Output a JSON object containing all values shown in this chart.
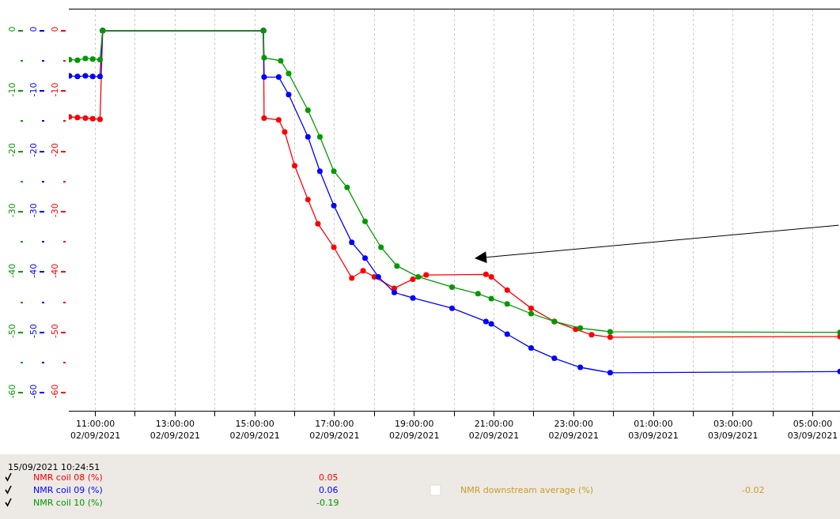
{
  "chart_data": {
    "type": "line",
    "marker": "circle",
    "grid": "x",
    "legend": "bottom",
    "xlim": [
      "2021-09-02T10:20",
      "2021-09-03T05:41"
    ],
    "xticks": [
      {
        "value": "2021-09-02T11:00",
        "label": "11:00:00\n02/09/2021"
      },
      {
        "value": "2021-09-02T12:00",
        "label": null
      },
      {
        "value": "2021-09-02T13:00",
        "label": "13:00:00\n02/09/2021"
      },
      {
        "value": "2021-09-02T14:00",
        "label": null
      },
      {
        "value": "2021-09-02T15:00",
        "label": "15:00:00\n02/09/2021"
      },
      {
        "value": "2021-09-02T16:00",
        "label": null
      },
      {
        "value": "2021-09-02T17:00",
        "label": "17:00:00\n02/09/2021"
      },
      {
        "value": "2021-09-02T18:00",
        "label": null
      },
      {
        "value": "2021-09-02T19:00",
        "label": "19:00:00\n02/09/2021"
      },
      {
        "value": "2021-09-02T20:00",
        "label": null
      },
      {
        "value": "2021-09-02T21:00",
        "label": "21:00:00\n02/09/2021"
      },
      {
        "value": "2021-09-02T22:00",
        "label": null
      },
      {
        "value": "2021-09-02T23:00",
        "label": "23:00:00\n02/09/2021"
      },
      {
        "value": "2021-09-03T00:00",
        "label": null
      },
      {
        "value": "2021-09-03T01:00",
        "label": "01:00:00\n03/09/2021"
      },
      {
        "value": "2021-09-03T02:00",
        "label": null
      },
      {
        "value": "2021-09-03T03:00",
        "label": "03:00:00\n03/09/2021"
      },
      {
        "value": "2021-09-03T04:00",
        "label": null
      },
      {
        "value": "2021-09-03T05:00",
        "label": "05:00:00\n03/09/2021"
      }
    ],
    "ylim": [
      -63,
      3.5
    ],
    "yticks": [
      0,
      -10,
      -20,
      -30,
      -40,
      -50,
      -60
    ],
    "y2lim": [
      -63,
      3.5
    ],
    "y2ticks": [
      0,
      -10,
      -20,
      -30,
      -40,
      -50,
      -60
    ],
    "y3lim": [
      -63,
      3.5
    ],
    "y3ticks": [
      0,
      -10,
      -20,
      -30,
      -40,
      -50,
      -60
    ],
    "series": [
      {
        "name": "NMR coil 08 (%)",
        "color": "#ff0000",
        "axis": "y",
        "x": [
          "2021-09-02T10:21",
          "2021-09-02T10:33",
          "2021-09-02T10:45",
          "2021-09-02T10:56",
          "2021-09-02T11:07",
          "2021-09-02T11:11",
          "2021-09-02T15:13",
          "2021-09-02T15:14",
          "2021-09-02T15:36",
          "2021-09-02T15:45",
          "2021-09-02T16:00",
          "2021-09-02T16:20",
          "2021-09-02T16:35",
          "2021-09-02T16:59",
          "2021-09-02T17:26",
          "2021-09-02T17:43",
          "2021-09-02T18:00",
          "2021-09-02T18:30",
          "2021-09-02T18:58",
          "2021-09-02T19:18",
          "2021-09-02T20:48",
          "2021-09-02T20:56",
          "2021-09-02T21:20",
          "2021-09-02T21:56",
          "2021-09-02T22:31",
          "2021-09-02T23:03",
          "2021-09-02T23:27",
          "2021-09-02T23:55",
          "2021-09-03T05:41"
        ],
        "values": [
          -14.3,
          -14.4,
          -14.5,
          -14.6,
          -14.7,
          0,
          0,
          -14.5,
          -14.8,
          -16.8,
          -22.4,
          -28,
          -32,
          -35.9,
          -41,
          -39.8,
          -40.8,
          -42.7,
          -41.2,
          -40.5,
          -40.4,
          -40.8,
          -43,
          -46,
          -48.2,
          -49.5,
          -50.4,
          -50.8,
          -50.7
        ]
      },
      {
        "name": "NMR coil 09 (%)",
        "color": "#0000ff",
        "axis": "y2",
        "x": [
          "2021-09-02T10:21",
          "2021-09-02T10:33",
          "2021-09-02T10:45",
          "2021-09-02T10:56",
          "2021-09-02T11:07",
          "2021-09-02T11:11",
          "2021-09-02T15:13",
          "2021-09-02T15:14",
          "2021-09-02T15:36",
          "2021-09-02T15:51",
          "2021-09-02T16:20",
          "2021-09-02T16:38",
          "2021-09-02T16:59",
          "2021-09-02T17:26",
          "2021-09-02T17:46",
          "2021-09-02T18:06",
          "2021-09-02T18:30",
          "2021-09-02T18:58",
          "2021-09-02T19:57",
          "2021-09-02T20:48",
          "2021-09-02T20:56",
          "2021-09-02T21:20",
          "2021-09-02T21:56",
          "2021-09-02T22:31",
          "2021-09-02T23:10",
          "2021-09-02T23:55",
          "2021-09-03T05:41"
        ],
        "values": [
          -7.5,
          -7.6,
          -7.5,
          -7.6,
          -7.6,
          0,
          0,
          -7.7,
          -7.7,
          -10.6,
          -17.6,
          -23.3,
          -29,
          -35.1,
          -37.7,
          -40.8,
          -43.4,
          -44.3,
          -46,
          -48.2,
          -48.6,
          -50.3,
          -52.6,
          -54.3,
          -55.8,
          -56.7,
          -56.5
        ]
      },
      {
        "name": "NMR coil 10 (%)",
        "color": "#009900",
        "axis": "y3",
        "x": [
          "2021-09-02T10:21",
          "2021-09-02T10:33",
          "2021-09-02T10:45",
          "2021-09-02T10:56",
          "2021-09-02T11:07",
          "2021-09-02T11:11",
          "2021-09-02T15:13",
          "2021-09-02T15:14",
          "2021-09-02T15:39",
          "2021-09-02T15:51",
          "2021-09-02T16:20",
          "2021-09-02T16:38",
          "2021-09-02T16:59",
          "2021-09-02T17:19",
          "2021-09-02T17:46",
          "2021-09-02T18:10",
          "2021-09-02T18:34",
          "2021-09-02T19:06",
          "2021-09-02T19:57",
          "2021-09-02T20:36",
          "2021-09-02T20:56",
          "2021-09-02T21:20",
          "2021-09-02T21:56",
          "2021-09-02T22:31",
          "2021-09-02T23:10",
          "2021-09-02T23:55",
          "2021-09-03T05:41"
        ],
        "values": [
          -4.8,
          -4.9,
          -4.6,
          -4.7,
          -4.8,
          0,
          0,
          -4.5,
          -5,
          -7.1,
          -13.2,
          -17.6,
          -23.3,
          -26,
          -31.6,
          -35.9,
          -39,
          -40.8,
          -42.5,
          -43.6,
          -44.4,
          -45.3,
          -46.9,
          -48.2,
          -49.3,
          -49.9,
          -50
        ]
      }
    ],
    "annotations": [
      "15/09/2021 10:24:51",
      "0.05",
      "0.06",
      "-0.19",
      "NMR downstream average (%)",
      "-0.02"
    ]
  }
}
